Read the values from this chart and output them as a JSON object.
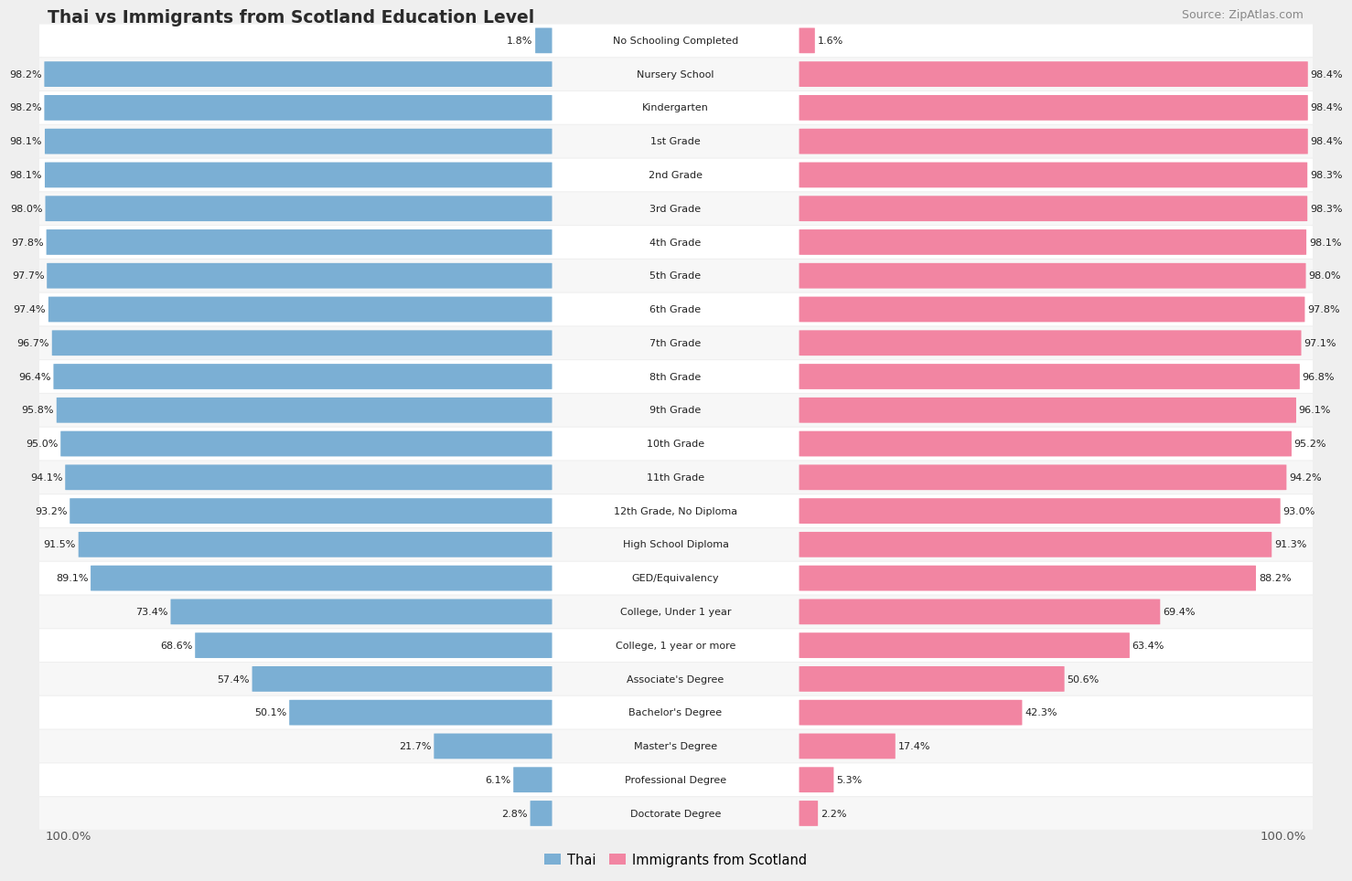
{
  "title": "Thai vs Immigrants from Scotland Education Level",
  "source": "Source: ZipAtlas.com",
  "categories": [
    "No Schooling Completed",
    "Nursery School",
    "Kindergarten",
    "1st Grade",
    "2nd Grade",
    "3rd Grade",
    "4th Grade",
    "5th Grade",
    "6th Grade",
    "7th Grade",
    "8th Grade",
    "9th Grade",
    "10th Grade",
    "11th Grade",
    "12th Grade, No Diploma",
    "High School Diploma",
    "GED/Equivalency",
    "College, Under 1 year",
    "College, 1 year or more",
    "Associate's Degree",
    "Bachelor's Degree",
    "Master's Degree",
    "Professional Degree",
    "Doctorate Degree"
  ],
  "thai_values": [
    1.8,
    98.2,
    98.2,
    98.1,
    98.1,
    98.0,
    97.8,
    97.7,
    97.4,
    96.7,
    96.4,
    95.8,
    95.0,
    94.1,
    93.2,
    91.5,
    89.1,
    73.4,
    68.6,
    57.4,
    50.1,
    21.7,
    6.1,
    2.8
  ],
  "scotland_values": [
    1.6,
    98.4,
    98.4,
    98.4,
    98.3,
    98.3,
    98.1,
    98.0,
    97.8,
    97.1,
    96.8,
    96.1,
    95.2,
    94.2,
    93.0,
    91.3,
    88.2,
    69.4,
    63.4,
    50.6,
    42.3,
    17.4,
    5.3,
    2.2
  ],
  "thai_color": "#7bafd4",
  "scotland_color": "#f285a2",
  "background_color": "#efefef",
  "row_color_light": "#f7f7f7",
  "row_color_white": "#ffffff"
}
